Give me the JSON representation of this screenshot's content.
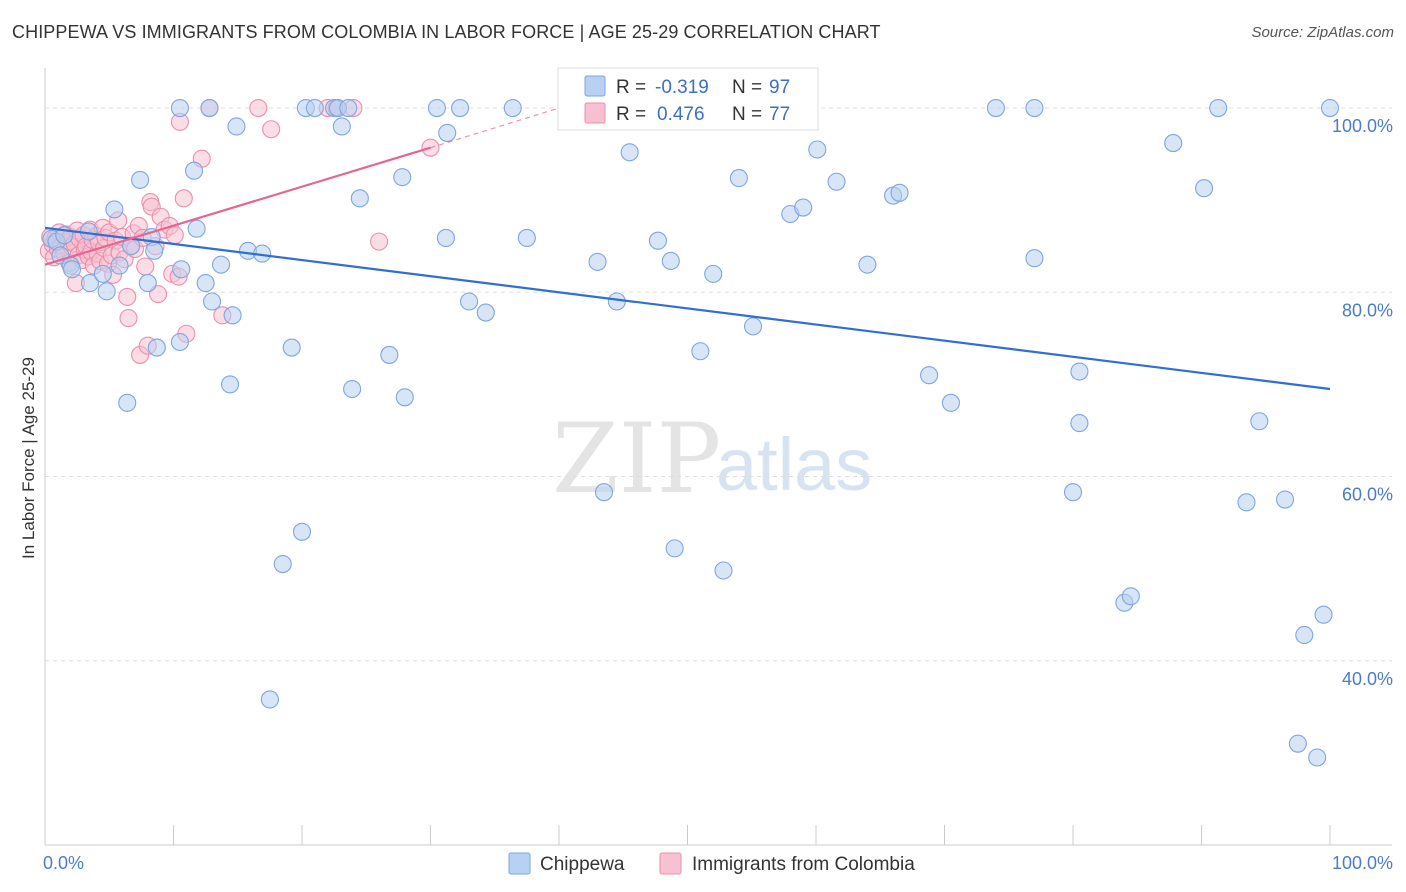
{
  "title": "CHIPPEWA VS IMMIGRANTS FROM COLOMBIA IN LABOR FORCE | AGE 25-29 CORRELATION CHART",
  "source": "Source: ZipAtlas.com",
  "colors": {
    "blue_fill": "#b8d0f1",
    "blue_stroke": "#7ea6e0",
    "blue_line": "#2f6fd0",
    "pink_fill": "#f7c1d2",
    "pink_stroke": "#ea8fae",
    "pink_line": "#e36790",
    "grid": "#dddddd",
    "tick_text": "#4a7cc9"
  },
  "chart_data": {
    "type": "scatter",
    "title": "CHIPPEWA VS IMMIGRANTS FROM COLOMBIA IN LABOR FORCE | AGE 25-29 CORRELATION CHART",
    "xlabel": "",
    "ylabel": "In Labor Force | Age 25-29",
    "xlim": [
      0,
      100
    ],
    "ylim": [
      20,
      105
    ],
    "x_tick_labels": [
      "0.0%",
      "100.0%"
    ],
    "y_ticks": [
      100,
      80,
      60,
      40
    ],
    "y_tick_labels": [
      "100.0%",
      "80.0%",
      "60.0%",
      "40.0%"
    ],
    "watermark": {
      "part1": "ZIP",
      "part2": "atlas"
    },
    "legend": {
      "r_label": "R =",
      "n_label": "N =",
      "rows": [
        {
          "r": "-0.319",
          "n": "97"
        },
        {
          "r": "0.476",
          "n": "77"
        }
      ]
    },
    "series": [
      {
        "name": "Chippewa",
        "trend": {
          "x": [
            0,
            100
          ],
          "y": [
            87.0,
            69.5
          ],
          "dashed_extension": false
        },
        "points": [
          [
            0.5,
            85.8
          ],
          [
            0.9,
            85.5
          ],
          [
            1.2,
            84.0
          ],
          [
            1.5,
            86.2
          ],
          [
            2.0,
            82.9
          ],
          [
            2.1,
            82.5
          ],
          [
            3.4,
            86.6
          ],
          [
            3.5,
            81.0
          ],
          [
            4.5,
            82.0
          ],
          [
            4.8,
            80.1
          ],
          [
            5.4,
            89.0
          ],
          [
            5.8,
            82.9
          ],
          [
            6.4,
            68.0
          ],
          [
            6.7,
            85.0
          ],
          [
            7.4,
            92.2
          ],
          [
            8.0,
            81.0
          ],
          [
            8.3,
            86.0
          ],
          [
            8.5,
            84.5
          ],
          [
            8.7,
            74.0
          ],
          [
            10.5,
            100.0
          ],
          [
            10.5,
            74.6
          ],
          [
            10.6,
            82.5
          ],
          [
            11.6,
            93.2
          ],
          [
            11.8,
            86.9
          ],
          [
            12.5,
            81.0
          ],
          [
            12.8,
            100.0
          ],
          [
            13.0,
            79.0
          ],
          [
            13.7,
            83.0
          ],
          [
            14.4,
            70.0
          ],
          [
            14.6,
            77.5
          ],
          [
            14.9,
            98.0
          ],
          [
            15.8,
            84.5
          ],
          [
            16.9,
            84.2
          ],
          [
            17.5,
            35.8
          ],
          [
            18.5,
            50.5
          ],
          [
            19.2,
            74.0
          ],
          [
            20.0,
            54.0
          ],
          [
            20.3,
            100.0
          ],
          [
            21.0,
            100.0
          ],
          [
            22.5,
            100.0
          ],
          [
            22.8,
            100.0
          ],
          [
            23.1,
            98.0
          ],
          [
            23.6,
            100.0
          ],
          [
            23.9,
            69.5
          ],
          [
            24.5,
            90.2
          ],
          [
            26.8,
            73.2
          ],
          [
            27.8,
            92.5
          ],
          [
            28.0,
            68.6
          ],
          [
            30.5,
            100.0
          ],
          [
            31.3,
            97.3
          ],
          [
            31.2,
            85.9
          ],
          [
            32.3,
            100.0
          ],
          [
            33.0,
            79.0
          ],
          [
            34.3,
            77.8
          ],
          [
            36.4,
            100.0
          ],
          [
            37.5,
            85.9
          ],
          [
            43.0,
            83.3
          ],
          [
            43.5,
            58.3
          ],
          [
            44.5,
            79.0
          ],
          [
            45.5,
            95.2
          ],
          [
            47.7,
            85.6
          ],
          [
            48.7,
            83.4
          ],
          [
            49.0,
            52.2
          ],
          [
            50.0,
            100.0
          ],
          [
            51.0,
            73.6
          ],
          [
            52.0,
            82.0
          ],
          [
            52.8,
            49.8
          ],
          [
            54.0,
            92.4
          ],
          [
            55.1,
            76.3
          ],
          [
            58.0,
            88.5
          ],
          [
            59.0,
            89.2
          ],
          [
            60.1,
            95.5
          ],
          [
            61.6,
            92.0
          ],
          [
            64.0,
            83.0
          ],
          [
            66.0,
            90.5
          ],
          [
            66.5,
            90.8
          ],
          [
            68.8,
            71.0
          ],
          [
            70.5,
            68.0
          ],
          [
            74.0,
            100.0
          ],
          [
            77.0,
            100.0
          ],
          [
            77.0,
            83.7
          ],
          [
            80.5,
            71.4
          ],
          [
            80.0,
            58.3
          ],
          [
            80.5,
            65.8
          ],
          [
            84.0,
            46.3
          ],
          [
            84.5,
            47.0
          ],
          [
            87.8,
            96.2
          ],
          [
            90.2,
            91.3
          ],
          [
            91.3,
            100.0
          ],
          [
            93.5,
            57.2
          ],
          [
            94.5,
            66.0
          ],
          [
            96.5,
            57.5
          ],
          [
            97.5,
            31.0
          ],
          [
            98.0,
            42.8
          ],
          [
            99.0,
            29.5
          ],
          [
            99.5,
            45.0
          ],
          [
            100.0,
            100.0
          ]
        ]
      },
      {
        "name": "Immigrants from Colombia",
        "trend": {
          "x": [
            0,
            30
          ],
          "y": [
            83.0,
            95.7
          ],
          "dashed_extension": true,
          "dash_to": [
            40,
            100.0
          ]
        },
        "points": [
          [
            0.3,
            84.5
          ],
          [
            0.4,
            86.0
          ],
          [
            0.6,
            85.2
          ],
          [
            0.7,
            83.8
          ],
          [
            0.8,
            85.9
          ],
          [
            1.0,
            84.7
          ],
          [
            1.1,
            86.5
          ],
          [
            1.3,
            85.1
          ],
          [
            1.5,
            84.2
          ],
          [
            1.6,
            86.3
          ],
          [
            1.8,
            85.5
          ],
          [
            1.9,
            83.2
          ],
          [
            2.0,
            86.0
          ],
          [
            2.1,
            84.9
          ],
          [
            2.3,
            85.3
          ],
          [
            2.4,
            81.0
          ],
          [
            2.5,
            86.7
          ],
          [
            2.6,
            84.0
          ],
          [
            2.7,
            85.8
          ],
          [
            2.9,
            83.5
          ],
          [
            3.0,
            86.2
          ],
          [
            3.1,
            84.6
          ],
          [
            3.2,
            85.0
          ],
          [
            3.4,
            83.9
          ],
          [
            3.5,
            86.8
          ],
          [
            3.6,
            84.4
          ],
          [
            3.7,
            85.7
          ],
          [
            3.8,
            82.9
          ],
          [
            4.0,
            86.1
          ],
          [
            4.1,
            84.2
          ],
          [
            4.2,
            85.4
          ],
          [
            4.3,
            83.4
          ],
          [
            4.5,
            87.0
          ],
          [
            4.6,
            84.8
          ],
          [
            4.7,
            85.9
          ],
          [
            4.9,
            83.1
          ],
          [
            5.0,
            86.5
          ],
          [
            5.2,
            84.0
          ],
          [
            5.3,
            81.9
          ],
          [
            5.5,
            85.6
          ],
          [
            5.7,
            87.8
          ],
          [
            5.8,
            84.3
          ],
          [
            6.0,
            86.0
          ],
          [
            6.2,
            83.6
          ],
          [
            6.4,
            79.5
          ],
          [
            6.5,
            77.2
          ],
          [
            6.7,
            85.1
          ],
          [
            6.9,
            86.4
          ],
          [
            7.0,
            84.7
          ],
          [
            7.3,
            87.2
          ],
          [
            7.4,
            73.2
          ],
          [
            7.6,
            85.9
          ],
          [
            7.8,
            82.8
          ],
          [
            8.0,
            74.2
          ],
          [
            8.2,
            89.8
          ],
          [
            8.3,
            89.3
          ],
          [
            8.6,
            85.0
          ],
          [
            8.8,
            79.8
          ],
          [
            9.0,
            88.2
          ],
          [
            9.3,
            86.8
          ],
          [
            9.7,
            87.2
          ],
          [
            9.9,
            82.0
          ],
          [
            10.1,
            86.2
          ],
          [
            10.4,
            81.7
          ],
          [
            10.5,
            98.5
          ],
          [
            10.8,
            90.2
          ],
          [
            11.0,
            75.5
          ],
          [
            12.2,
            94.5
          ],
          [
            12.8,
            100.0
          ],
          [
            13.8,
            77.5
          ],
          [
            16.6,
            100.0
          ],
          [
            17.6,
            97.7
          ],
          [
            22.0,
            100.0
          ],
          [
            22.7,
            100.0
          ],
          [
            24.0,
            100.0
          ],
          [
            26.0,
            85.5
          ],
          [
            30.0,
            95.7
          ]
        ]
      }
    ]
  }
}
